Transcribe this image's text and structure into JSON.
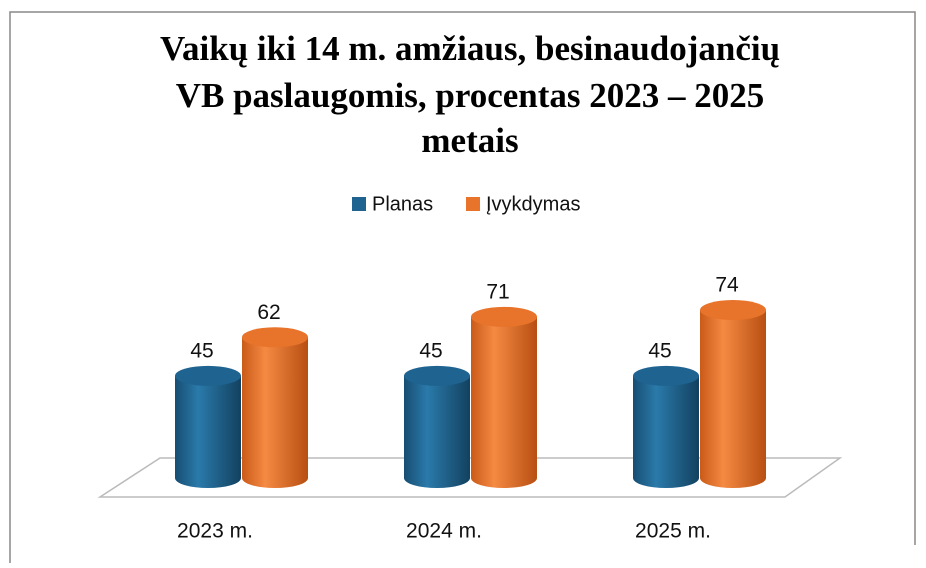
{
  "chart_data": {
    "type": "bar3d",
    "title": [
      "Vaikų iki 14 m. amžiaus,  besinaudojančių",
      "VB paslaugomis, procentas  2023 – 2025",
      "metais"
    ],
    "categories": [
      "2023 m.",
      "2024 m.",
      "2025 m."
    ],
    "series": [
      {
        "name": "Planas",
        "color": "#1f6391",
        "values": [
          45,
          45,
          45
        ]
      },
      {
        "name": "Įvykdymas",
        "color": "#e8732a",
        "values": [
          62,
          71,
          74
        ]
      }
    ],
    "legend": "top",
    "data_labels": true
  }
}
